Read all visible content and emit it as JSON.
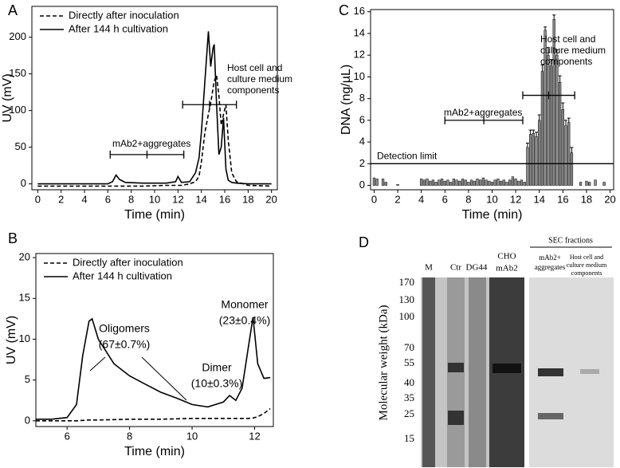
{
  "chart_data": [
    {
      "type": "line",
      "panel": "A",
      "x_label": "Time (min)",
      "y_label": "UV (mV)",
      "xlim": [
        -0.5,
        20.5
      ],
      "ylim": [
        -8,
        242
      ],
      "xticks": [
        0,
        2,
        4,
        6,
        8,
        10,
        12,
        14,
        16,
        18,
        20
      ],
      "yticks": [
        0,
        50,
        100,
        150,
        200
      ],
      "legend": "top-left",
      "x": [
        0,
        2,
        4,
        6,
        6.4,
        6.7,
        7.0,
        7.5,
        9,
        11,
        11.8,
        12.0,
        12.3,
        13,
        13.5,
        13.8,
        14.0,
        14.3,
        14.6,
        14.8,
        15.0,
        15.1,
        15.3,
        15.5,
        15.7,
        15.9,
        16.1,
        16.3,
        16.6,
        17,
        18,
        20
      ],
      "series": [
        {
          "name": "Directly after inoculation",
          "color": "#000000",
          "line_style": "dashed",
          "values": [
            -3,
            -3,
            -3,
            -3,
            -3,
            -3,
            -3,
            -3,
            -3,
            -2,
            -2,
            -2,
            -2,
            0,
            3,
            10,
            30,
            70,
            95,
            110,
            130,
            140,
            148,
            120,
            80,
            95,
            108,
            60,
            15,
            3,
            -2,
            -3
          ]
        },
        {
          "name": "After 144 h cultivation",
          "color": "#000000",
          "line_style": "solid",
          "values": [
            0,
            0,
            0,
            0,
            3,
            12,
            6,
            2,
            1,
            1,
            3,
            10,
            2,
            3,
            15,
            35,
            70,
            140,
            208,
            160,
            185,
            190,
            110,
            40,
            50,
            90,
            20,
            5,
            2,
            1,
            0,
            0
          ]
        }
      ],
      "annotations": [
        {
          "text": [
            "mAb2+aggregates"
          ],
          "range": [
            6.2,
            12.5
          ],
          "y": 40
        },
        {
          "text": [
            "Host cell and",
            "culture medium",
            "components"
          ],
          "range": [
            12.4,
            17.0
          ],
          "y": 108
        }
      ]
    },
    {
      "type": "line",
      "panel": "B",
      "x_label": "Time (min)",
      "y_label": "UV (mV)",
      "xlim": [
        5,
        12.6
      ],
      "ylim": [
        -0.7,
        20.5
      ],
      "xticks": [
        6,
        8,
        10,
        12
      ],
      "yticks": [
        0,
        5,
        10,
        15,
        20
      ],
      "legend": "top-left",
      "x": [
        5,
        5.5,
        6,
        6.3,
        6.5,
        6.7,
        6.8,
        7,
        7.5,
        8,
        8.5,
        9,
        9.5,
        10,
        10.5,
        11,
        11.2,
        11.4,
        11.6,
        11.8,
        11.95,
        12.1,
        12.3,
        12.5
      ],
      "series": [
        {
          "name": "Directly after inoculation",
          "color": "#000000",
          "line_style": "dashed",
          "values": [
            0,
            0,
            0,
            0,
            0.05,
            0.1,
            0.1,
            0.1,
            0.15,
            0.2,
            0.2,
            0.2,
            0.25,
            0.3,
            0.3,
            0.3,
            0.3,
            0.3,
            0.3,
            0.3,
            0.35,
            0.5,
            0.9,
            1.5
          ]
        },
        {
          "name": "After 144 h cultivation",
          "color": "#000000",
          "line_style": "solid",
          "values": [
            0.2,
            0.2,
            0.4,
            2,
            8,
            12.2,
            12.5,
            10,
            7,
            5.5,
            4.5,
            3.5,
            2.8,
            2,
            1.7,
            2.3,
            3.1,
            2.5,
            4,
            9,
            12.7,
            7,
            5.2,
            5.3
          ]
        }
      ],
      "annotations": [
        {
          "text": [
            "Oligomers",
            "(67±0.7%)"
          ]
        },
        {
          "text": [
            "Dimer",
            "(10±0.3%)"
          ]
        },
        {
          "text": [
            "Monomer",
            "(23±0.4%)"
          ]
        }
      ]
    },
    {
      "type": "bar",
      "panel": "C",
      "x_label": "Time (min)",
      "y_label": "DNA (ng/µL)",
      "xlim": [
        -0.3,
        20.3
      ],
      "ylim": [
        -0.4,
        16.2
      ],
      "xticks": [
        0,
        2,
        4,
        6,
        8,
        10,
        12,
        14,
        16,
        18,
        20
      ],
      "yticks": [
        0,
        2,
        4,
        6,
        8,
        10,
        12,
        14,
        16
      ],
      "color": "#8c8c8c",
      "x": [
        0,
        0.25,
        0.5,
        0.75,
        1,
        1.25,
        1.5,
        1.75,
        2,
        2.25,
        2.5,
        2.75,
        3,
        3.25,
        3.5,
        3.75,
        4,
        4.25,
        4.5,
        4.75,
        5,
        5.25,
        5.5,
        5.75,
        6,
        6.25,
        6.5,
        6.75,
        7,
        7.25,
        7.5,
        7.75,
        8,
        8.25,
        8.5,
        8.75,
        9,
        9.25,
        9.5,
        9.75,
        10,
        10.25,
        10.5,
        10.75,
        11,
        11.25,
        11.5,
        11.75,
        12,
        12.25,
        12.5,
        12.75,
        13,
        13.25,
        13.5,
        13.75,
        14,
        14.25,
        14.5,
        14.75,
        15,
        15.25,
        15.5,
        15.75,
        16,
        16.25,
        16.5,
        16.75,
        17,
        17.25,
        17.5,
        17.75,
        18,
        18.25,
        18.5,
        18.75,
        19,
        19.25,
        19.5
      ],
      "values": [
        0.7,
        0.6,
        0,
        0.6,
        0.3,
        0,
        0,
        0,
        0.1,
        0,
        0,
        0,
        0,
        0,
        0,
        0,
        0.6,
        0.5,
        0.6,
        0.4,
        0.5,
        0.3,
        0.5,
        0.6,
        0.4,
        0.5,
        0.3,
        0.6,
        0.5,
        0.4,
        0.6,
        0.5,
        0.3,
        0.5,
        0.4,
        0.6,
        0.5,
        0.7,
        0.5,
        0.4,
        0.3,
        0.5,
        0.6,
        0.4,
        0.5,
        0.3,
        0.5,
        0.8,
        0.6,
        0.4,
        0.5,
        0.3,
        3.5,
        4.7,
        4.8,
        4.5,
        6,
        10.5,
        14.3,
        12,
        11,
        15.3,
        12,
        9.5,
        7,
        5.5,
        5.8,
        3,
        0,
        0,
        0.3,
        0,
        0.4,
        0.3,
        0,
        0.5,
        0,
        0,
        0.3
      ],
      "errors": [
        null,
        null,
        null,
        null,
        null,
        null,
        null,
        null,
        null,
        null,
        null,
        null,
        null,
        null,
        null,
        null,
        null,
        null,
        null,
        null,
        null,
        null,
        null,
        null,
        null,
        null,
        null,
        null,
        null,
        null,
        null,
        null,
        null,
        null,
        null,
        null,
        null,
        null,
        null,
        null,
        null,
        null,
        null,
        null,
        null,
        null,
        null,
        null,
        null,
        null,
        null,
        null,
        0.4,
        0.4,
        0.3,
        0.4,
        0.5,
        0.6,
        0.3,
        0.7,
        0.6,
        0.4,
        0.5,
        0.6,
        0.6,
        0.5,
        0.4,
        0.5,
        null,
        null,
        null,
        null,
        null,
        null,
        null,
        null,
        null,
        null,
        null
      ],
      "reference_line": {
        "label": "Detection limit",
        "value": 2
      },
      "annotations": [
        {
          "text": [
            "mAb2+aggregates"
          ],
          "range": [
            6.0,
            12.6
          ],
          "y": 6
        },
        {
          "text": [
            "Host cell and",
            "culture medium",
            "components"
          ],
          "range": [
            12.6,
            17.0
          ],
          "y": 8.3
        }
      ]
    }
  ],
  "gel": {
    "panel": "D",
    "title": "SEC fractions",
    "y_label": "Molecular weight (kDa)",
    "markers": [
      170,
      130,
      100,
      70,
      55,
      40,
      35,
      25,
      15
    ],
    "lanes": [
      [
        "M"
      ],
      [
        "Ctr"
      ],
      [
        "DG44"
      ],
      [
        "CHO",
        "mAb2"
      ],
      [
        "mAb2+",
        "aggregates"
      ],
      [
        "Host cell and",
        "culture medium",
        "components"
      ]
    ]
  }
}
